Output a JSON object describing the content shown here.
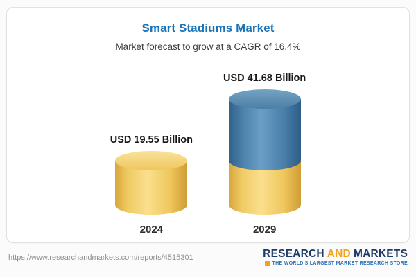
{
  "chart_data": {
    "type": "bar",
    "subtype": "3d-cylinder",
    "title": "Smart Stadiums Market",
    "subtitle": "Market forecast to grow at a CAGR of 16.4%",
    "cagr_percent": 16.4,
    "unit": "USD Billion",
    "categories": [
      "2024",
      "2029"
    ],
    "values": [
      19.55,
      41.68
    ],
    "value_labels": [
      "USD 19.55 Billion",
      "USD 41.68 Billion"
    ],
    "legend": "none",
    "grid": "off",
    "layout_hint": "2029 cylinder is stacked: gold base equal to 2024 value, blue segment is incremental growth",
    "colors": {
      "gold": "#F2C55F",
      "blue": "#4E81AB",
      "title": "#1B74B8",
      "value_text": "#171717",
      "year_text": "#2D2D2D"
    }
  },
  "footer": {
    "url": "https://www.researchandmarkets.com/reports/4515301",
    "logo": {
      "research": "RESEARCH",
      "and": "AND",
      "markets": "MARKETS",
      "tagline": "THE WORLD'S LARGEST MARKET RESEARCH STORE",
      "navy": "#1E3A66",
      "orange": "#F2A31B",
      "tagline_color": "#2E74B9"
    }
  }
}
